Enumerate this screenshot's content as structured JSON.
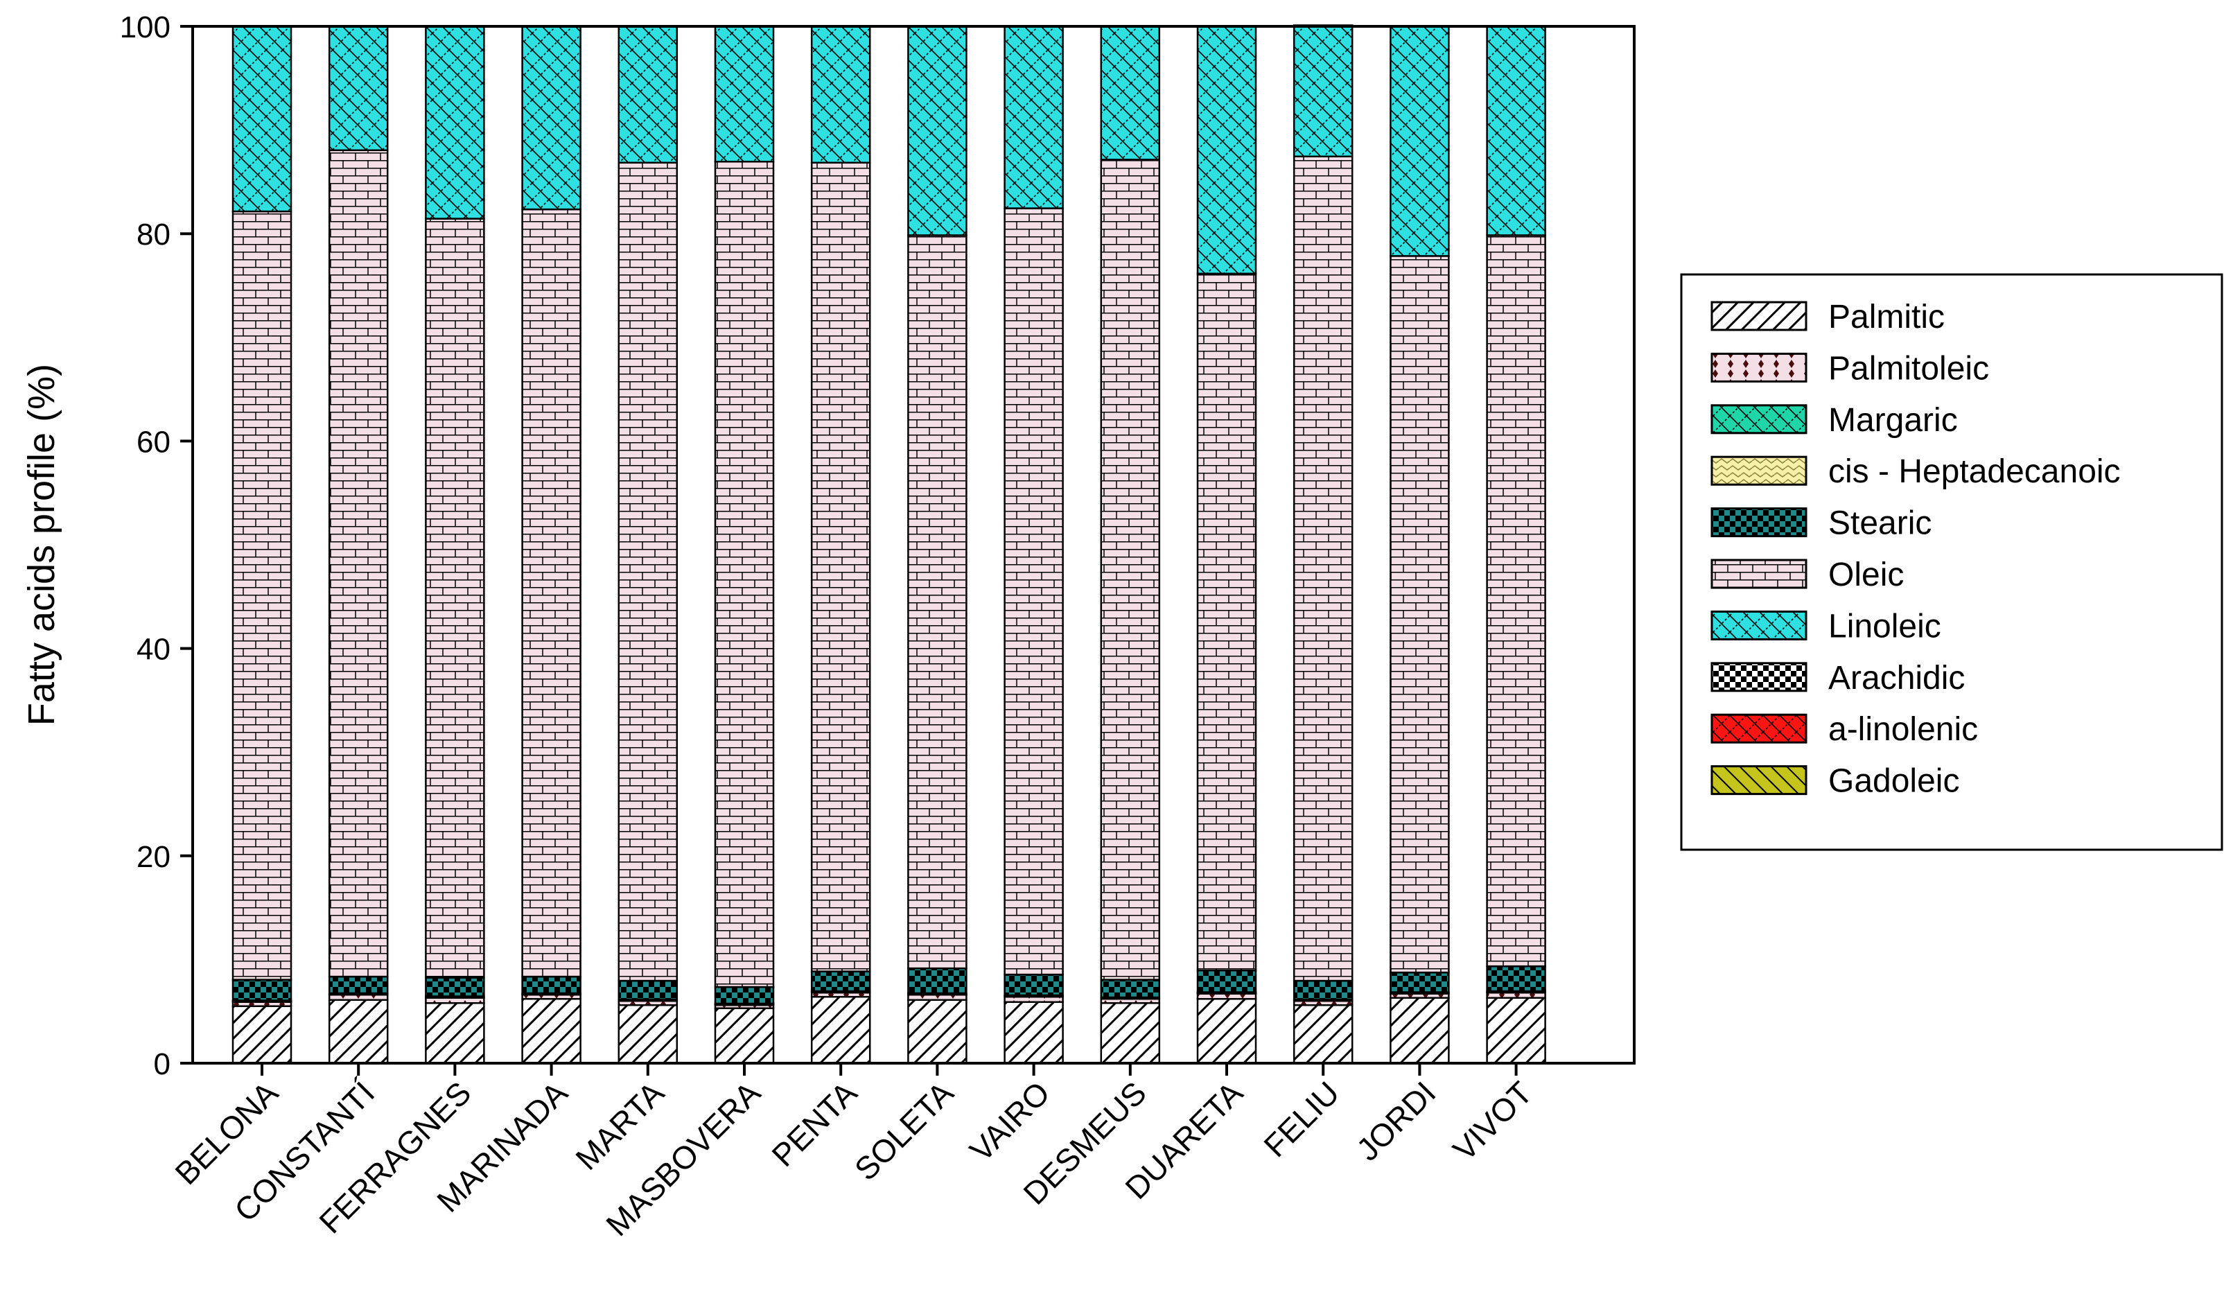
{
  "chart_data": {
    "type": "bar",
    "stacked": true,
    "title": "",
    "xlabel": "",
    "ylabel": "Fatty acids profile (%)",
    "ylim": [
      0,
      100
    ],
    "yticks": [
      0,
      20,
      40,
      60,
      80,
      100
    ],
    "grid": false,
    "legend_position": "right",
    "categories": [
      "BELONA",
      "CONSTANTÍ",
      "FERRAGNES",
      "MARINADA",
      "MARTA",
      "MASBOVERA",
      "PENTA",
      "SOLETA",
      "VAIRO",
      "DESMEUS",
      "DUARETA",
      "FELIU",
      "JORDI",
      "VIVOT"
    ],
    "series": [
      {
        "name": "Palmitic",
        "pattern": "diag-hatch",
        "color": "#ffffff",
        "values": [
          5.5,
          6.1,
          5.8,
          6.2,
          5.6,
          5.3,
          6.4,
          6.1,
          5.9,
          5.8,
          6.2,
          5.6,
          6.3,
          6.3
        ]
      },
      {
        "name": "Palmitoleic",
        "pattern": "dots",
        "color": "#f5dfe6",
        "values": [
          0.4,
          0.5,
          0.5,
          0.4,
          0.4,
          0.3,
          0.4,
          0.5,
          0.5,
          0.4,
          0.5,
          0.4,
          0.4,
          0.5
        ]
      },
      {
        "name": "Margaric",
        "pattern": "cross-hatch",
        "color": "#1fd6a8",
        "values": [
          0.05,
          0.05,
          0.05,
          0.05,
          0.05,
          0.05,
          0.05,
          0.05,
          0.05,
          0.05,
          0.05,
          0.05,
          0.05,
          0.05
        ]
      },
      {
        "name": "cis - Heptadecanoic",
        "pattern": "wave",
        "color": "#f7f0a6",
        "values": [
          0.1,
          0.1,
          0.1,
          0.1,
          0.1,
          0.1,
          0.1,
          0.1,
          0.1,
          0.1,
          0.1,
          0.1,
          0.1,
          0.1
        ]
      },
      {
        "name": "Stearic",
        "pattern": "checker",
        "color": "#1e8a8a",
        "values": [
          2.0,
          1.6,
          1.8,
          1.6,
          1.8,
          1.6,
          1.9,
          2.4,
          2.0,
          1.7,
          2.1,
          1.8,
          1.9,
          2.4
        ]
      },
      {
        "name": "Oleic",
        "pattern": "brick",
        "color": "#f5dfe6",
        "values": [
          74.1,
          79.7,
          73.2,
          74.0,
          78.9,
          79.6,
          78.0,
          70.7,
          73.9,
          79.1,
          67.2,
          79.5,
          69.1,
          70.5
        ]
      },
      {
        "name": "Linoleic",
        "pattern": "cross-hatch",
        "color": "#2ee0e0",
        "values": [
          17.85,
          11.95,
          18.55,
          17.65,
          13.15,
          13.05,
          13.15,
          20.15,
          17.55,
          12.85,
          23.85,
          12.65,
          22.15,
          20.15
        ]
      },
      {
        "name": "Arachidic",
        "pattern": "checker",
        "color": "#ffffff",
        "values": [
          0,
          0,
          0,
          0,
          0,
          0,
          0,
          0,
          0,
          0,
          0,
          0,
          0,
          0
        ]
      },
      {
        "name": "a-linolenic",
        "pattern": "cross-hatch",
        "color": "#ff1414",
        "values": [
          0,
          0,
          0,
          0,
          0,
          0,
          0,
          0,
          0,
          0,
          0,
          0,
          0,
          0
        ]
      },
      {
        "name": "Gadoleic",
        "pattern": "back-diag",
        "color": "#c4c41c",
        "values": [
          0,
          0,
          0,
          0,
          0,
          0,
          0,
          0,
          0,
          0,
          0,
          0,
          0,
          0
        ]
      }
    ]
  }
}
